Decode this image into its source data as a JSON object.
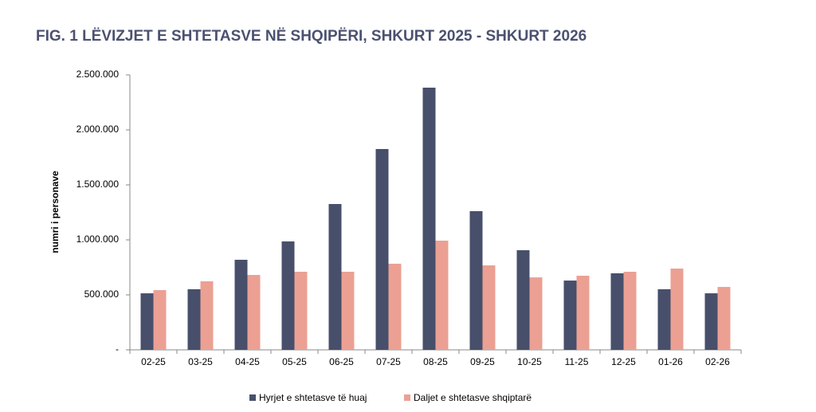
{
  "chart_data": {
    "type": "bar",
    "title": "FIG. 1 LËVIZJET E SHTETASVE NË SHQIPËRI, SHKURT 2025 - SHKURT 2026",
    "y_label": "numri i personave",
    "categories": [
      "02-25",
      "03-25",
      "04-25",
      "05-25",
      "06-25",
      "07-25",
      "08-25",
      "09-25",
      "10-25",
      "11-25",
      "12-25",
      "01-26",
      "02-26"
    ],
    "series": [
      {
        "name": "Hyrjet e shtetasve të huaj",
        "color": "#474f6b",
        "values": [
          514000,
          551000,
          819000,
          986000,
          1326000,
          1826000,
          2384000,
          1261000,
          906000,
          630000,
          696000,
          551000,
          514000
        ]
      },
      {
        "name": "Daljet e shtetasve shqiptarë",
        "color": "#eba093",
        "values": [
          543000,
          623000,
          681000,
          710000,
          710000,
          783000,
          993000,
          768000,
          659000,
          674000,
          710000,
          739000,
          572000
        ]
      }
    ],
    "ylim": [
      0,
      2500000
    ],
    "yticks": [
      {
        "value": 0,
        "label": "-"
      },
      {
        "value": 500000,
        "label": "500.000"
      },
      {
        "value": 1000000,
        "label": "1.000.000"
      },
      {
        "value": 1500000,
        "label": "1.500.000"
      },
      {
        "value": 2000000,
        "label": "2.000.000"
      },
      {
        "value": 2500000,
        "label": "2.500.000"
      }
    ],
    "legend": "bottom"
  }
}
